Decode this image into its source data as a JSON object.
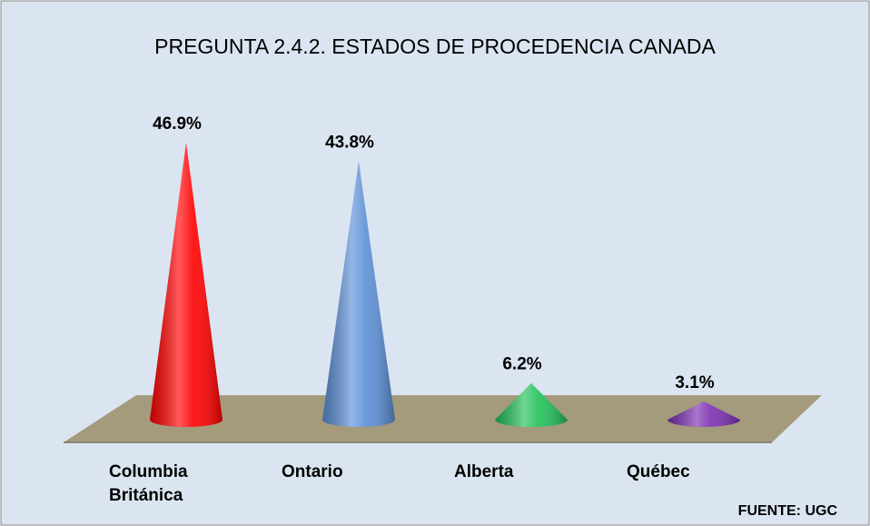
{
  "chart_data": {
    "type": "cone",
    "title": "PREGUNTA 2.4.2. ESTADOS DE PROCEDENCIA CANADA",
    "categories": [
      "Columbia Británica",
      "Ontario",
      "Alberta",
      "Québec"
    ],
    "values": [
      46.9,
      43.8,
      6.2,
      3.1
    ],
    "value_labels": [
      "46.9%",
      "43.8%",
      "6.2%",
      "3.1%"
    ],
    "colors": [
      "#ff0000",
      "#5b8fd6",
      "#22c05a",
      "#7a2fb0"
    ],
    "source": "FUENTE: UGC"
  }
}
